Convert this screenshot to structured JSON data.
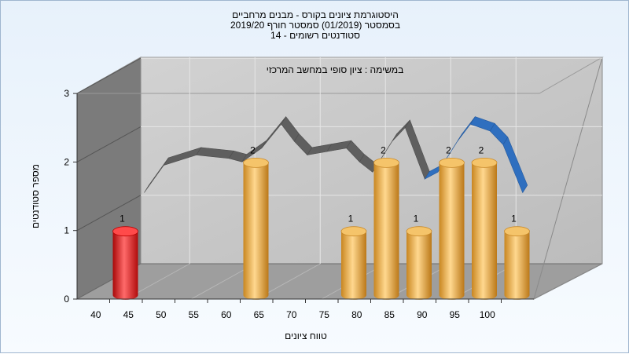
{
  "chart_data": {
    "type": "bar",
    "title_lines": [
      "היסטוגרמת ציונים בקורס - מבנים מרחביים",
      "בסמסטר  (01/2019)  סמסטר חורף 2019/20",
      "סטודנטים רשומים - 14"
    ],
    "subtitle": "במשימה : ציון סופי במחשב המרכזי",
    "xlabel": "טווח ציונים",
    "ylabel": "מספר סטודנטים",
    "x_ticks": [
      "40",
      "45",
      "50",
      "55",
      "60",
      "65",
      "70",
      "75",
      "80",
      "85",
      "90",
      "95",
      "100"
    ],
    "y_ticks": [
      "0",
      "1",
      "2",
      "3"
    ],
    "ylim": [
      0,
      3
    ],
    "grid": true,
    "bars": [
      {
        "x": 40,
        "value": 1,
        "label": "1",
        "highlight": true
      },
      {
        "x": 60,
        "value": 2,
        "label": "2",
        "highlight": false
      },
      {
        "x": 75,
        "value": 1,
        "label": "1",
        "highlight": false
      },
      {
        "x": 80,
        "value": 2,
        "label": "2",
        "highlight": false
      },
      {
        "x": 85,
        "value": 1,
        "label": "1",
        "highlight": false
      },
      {
        "x": 90,
        "value": 2,
        "label": "2",
        "highlight": false
      },
      {
        "x": 95,
        "value": 2,
        "label": "2",
        "highlight": false
      },
      {
        "x": 100,
        "value": 1,
        "label": "1",
        "highlight": false
      }
    ],
    "trend_series": [
      {
        "x": 42,
        "y": 1.3
      },
      {
        "x": 45,
        "y": 1.7
      },
      {
        "x": 50,
        "y": 1.85
      },
      {
        "x": 55,
        "y": 1.8
      },
      {
        "x": 57,
        "y": 1.75
      },
      {
        "x": 60,
        "y": 1.95
      },
      {
        "x": 63,
        "y": 2.3
      },
      {
        "x": 65,
        "y": 2.05
      },
      {
        "x": 67,
        "y": 1.85
      },
      {
        "x": 70,
        "y": 1.9
      },
      {
        "x": 73,
        "y": 1.95
      },
      {
        "x": 75,
        "y": 1.75
      },
      {
        "x": 77,
        "y": 1.6
      },
      {
        "x": 80,
        "y": 2.05
      },
      {
        "x": 82,
        "y": 2.25
      },
      {
        "x": 85,
        "y": 1.5
      },
      {
        "x": 87,
        "y": 1.6
      },
      {
        "x": 90,
        "y": 2.05
      },
      {
        "x": 92,
        "y": 2.3
      },
      {
        "x": 95,
        "y": 2.2
      },
      {
        "x": 97,
        "y": 2.0
      },
      {
        "x": 100,
        "y": 1.3
      }
    ],
    "colors": {
      "bar": "#e9a84a",
      "bar_highlight": "#dd2020",
      "trend_dark": "#5f5f5f",
      "trend_blue": "#2f6fbf",
      "back_wall": "#c6c6c6",
      "side_wall": "#7b7b7b",
      "floor": "#9e9e9e"
    }
  }
}
